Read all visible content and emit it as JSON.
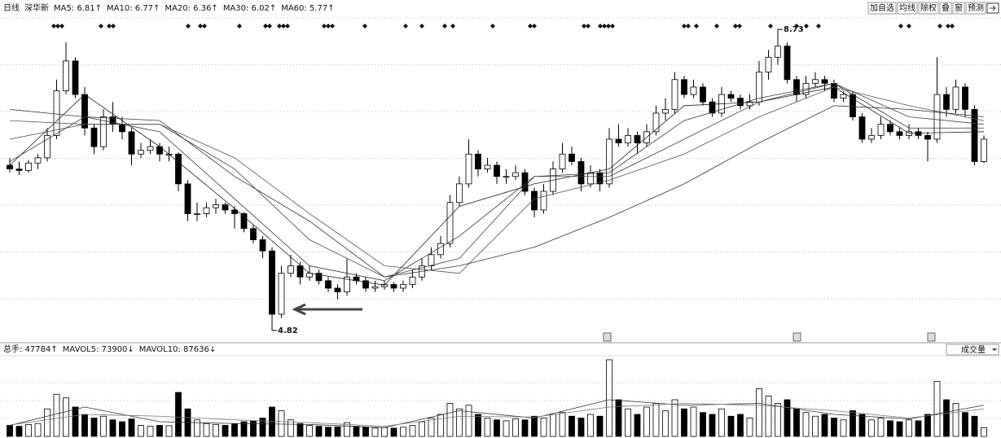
{
  "chart_data": [
    {
      "type": "candlestick",
      "header": [
        "日线",
        "深华新"
      ],
      "open": [
        6.95,
        6.9,
        6.88,
        6.98,
        7.05,
        7.35,
        7.95,
        8.35,
        7.9,
        7.45,
        7.2,
        7.6,
        7.5,
        7.4,
        7.1,
        7.15,
        7.2,
        7.1,
        7.1,
        6.7,
        6.3,
        6.3,
        6.38,
        6.42,
        6.35,
        6.3,
        6.1,
        5.95,
        5.8,
        4.95,
        5.5,
        5.6,
        5.45,
        5.5,
        5.4,
        5.3,
        5.25,
        5.45,
        5.4,
        5.3,
        5.32,
        5.35,
        5.3,
        5.35,
        5.45,
        5.6,
        5.75,
        5.9,
        6.45,
        6.7,
        7.1,
        6.9,
        6.95,
        6.8,
        6.8,
        6.85,
        6.6,
        6.35,
        6.6,
        6.9,
        7.1,
        7.0,
        6.7,
        6.85,
        6.7,
        7.3,
        7.25,
        7.35,
        7.25,
        7.4,
        7.65,
        7.7,
        8.1,
        7.9,
        8.0,
        7.8,
        7.65,
        7.9,
        7.85,
        7.75,
        7.8,
        8.2,
        8.4,
        8.55,
        8.1,
        7.9,
        8.05,
        8.1,
        8.05,
        7.85,
        7.9,
        7.6,
        7.3,
        7.35,
        7.5,
        7.4,
        7.35,
        7.4,
        7.35,
        7.3,
        7.9,
        7.7,
        8.0,
        7.7,
        7.0
      ],
      "high": [
        7.05,
        7.0,
        7.02,
        7.1,
        7.45,
        8.1,
        8.6,
        8.4,
        8.0,
        7.5,
        7.7,
        7.8,
        7.6,
        7.45,
        7.25,
        7.3,
        7.25,
        7.2,
        7.12,
        6.75,
        6.45,
        6.45,
        6.5,
        6.45,
        6.4,
        6.32,
        6.15,
        6.0,
        5.85,
        5.6,
        5.75,
        5.65,
        5.6,
        5.55,
        5.45,
        5.35,
        5.7,
        5.5,
        5.45,
        5.4,
        5.4,
        5.38,
        5.4,
        5.55,
        5.7,
        5.85,
        6.0,
        6.55,
        6.8,
        7.3,
        7.15,
        7.05,
        7.0,
        6.9,
        6.95,
        6.9,
        6.65,
        6.7,
        7.0,
        7.25,
        7.2,
        7.05,
        6.95,
        6.9,
        7.45,
        7.5,
        7.45,
        7.4,
        7.5,
        7.75,
        7.85,
        8.2,
        8.15,
        8.1,
        8.05,
        7.85,
        8.0,
        7.95,
        7.9,
        7.9,
        8.35,
        8.5,
        8.73,
        8.6,
        8.15,
        8.15,
        8.2,
        8.15,
        8.1,
        7.95,
        7.95,
        7.65,
        7.45,
        7.6,
        7.55,
        7.45,
        7.5,
        7.45,
        7.4,
        8.4,
        8.0,
        8.1,
        8.05,
        7.75,
        7.35
      ],
      "low": [
        6.85,
        6.82,
        6.85,
        6.9,
        7.0,
        7.3,
        7.9,
        7.85,
        7.35,
        7.1,
        7.15,
        7.4,
        7.3,
        6.95,
        7.05,
        7.1,
        7.0,
        7.0,
        6.6,
        6.2,
        6.2,
        6.25,
        6.3,
        6.3,
        6.1,
        6.05,
        5.9,
        5.7,
        4.82,
        4.9,
        5.45,
        5.35,
        5.4,
        5.35,
        5.25,
        5.15,
        5.2,
        5.35,
        5.25,
        5.25,
        5.28,
        5.25,
        5.25,
        5.3,
        5.4,
        5.55,
        5.7,
        5.85,
        6.4,
        6.65,
        6.8,
        6.85,
        6.7,
        6.7,
        6.75,
        6.55,
        6.25,
        6.3,
        6.55,
        6.85,
        6.95,
        6.6,
        6.65,
        6.6,
        6.65,
        7.2,
        7.2,
        7.1,
        7.2,
        7.35,
        7.55,
        7.65,
        7.85,
        7.85,
        7.75,
        7.6,
        7.6,
        7.8,
        7.7,
        7.7,
        7.75,
        8.1,
        8.3,
        8.05,
        7.8,
        7.85,
        8.0,
        7.95,
        7.8,
        7.8,
        7.55,
        7.25,
        7.25,
        7.3,
        7.35,
        7.3,
        7.3,
        7.3,
        7.0,
        7.25,
        7.6,
        7.65,
        7.6,
        6.95,
        6.98
      ],
      "close": [
        6.9,
        6.88,
        6.98,
        7.05,
        7.35,
        7.95,
        8.35,
        7.9,
        7.45,
        7.2,
        7.6,
        7.5,
        7.4,
        7.1,
        7.15,
        7.2,
        7.1,
        7.1,
        6.7,
        6.3,
        6.3,
        6.38,
        6.42,
        6.35,
        6.3,
        6.1,
        5.95,
        5.8,
        4.95,
        5.5,
        5.6,
        5.45,
        5.5,
        5.4,
        5.3,
        5.25,
        5.45,
        5.4,
        5.3,
        5.32,
        5.35,
        5.3,
        5.35,
        5.45,
        5.6,
        5.75,
        5.9,
        6.45,
        6.7,
        7.1,
        6.9,
        6.95,
        6.8,
        6.8,
        6.85,
        6.6,
        6.35,
        6.6,
        6.9,
        7.1,
        7.0,
        6.7,
        6.85,
        6.7,
        7.3,
        7.25,
        7.35,
        7.25,
        7.4,
        7.65,
        7.7,
        8.1,
        7.9,
        8.0,
        7.8,
        7.65,
        7.9,
        7.85,
        7.75,
        7.8,
        8.2,
        8.4,
        8.55,
        8.1,
        7.9,
        8.05,
        8.1,
        8.05,
        7.85,
        7.9,
        7.6,
        7.3,
        7.35,
        7.5,
        7.4,
        7.35,
        7.4,
        7.35,
        7.3,
        7.9,
        7.7,
        8.0,
        7.7,
        7.0,
        7.3
      ],
      "series": [
        {
          "legend": "MA5: 6.81↑",
          "color": "#222222",
          "x": [
            0,
            8,
            16,
            24,
            32,
            40,
            48,
            56,
            64,
            72,
            80,
            88,
            96,
            104
          ],
          "values": [
            6.95,
            7.9,
            7.2,
            6.37,
            5.5,
            5.34,
            6.4,
            6.7,
            6.9,
            7.75,
            7.8,
            8.0,
            7.38,
            7.4
          ]
        },
        {
          "legend": "MA10: 6.77↑",
          "color": "#333333",
          "x": [
            0,
            8,
            16,
            24,
            32,
            40,
            48,
            56,
            64,
            72,
            80,
            88,
            96,
            104
          ],
          "values": [
            7.0,
            7.6,
            7.4,
            6.5,
            5.6,
            5.4,
            6.0,
            6.8,
            6.85,
            7.55,
            7.85,
            8.05,
            7.45,
            7.45
          ]
        },
        {
          "legend": "MA20: 6.36↑",
          "color": "#444444",
          "x": [
            0,
            8,
            16,
            24,
            32,
            40,
            48,
            56,
            64,
            72,
            80,
            88,
            96,
            104
          ],
          "values": [
            7.3,
            7.5,
            7.5,
            6.9,
            5.95,
            5.45,
            5.7,
            6.8,
            6.8,
            7.3,
            7.8,
            8.05,
            7.6,
            7.5
          ]
        },
        {
          "legend": "MA30: 6.02↑",
          "color": "#555555",
          "x": [
            0,
            8,
            16,
            24,
            32,
            40,
            48,
            56,
            64,
            72,
            80,
            88,
            96,
            104
          ],
          "values": [
            7.55,
            7.5,
            7.5,
            7.05,
            6.3,
            5.6,
            5.5,
            6.5,
            6.75,
            7.1,
            7.6,
            8.0,
            7.75,
            7.55
          ]
        },
        {
          "legend": "MA60: 5.77↑",
          "color": "#333333",
          "x": [
            0,
            8,
            16,
            24,
            32,
            40,
            48,
            56,
            64,
            72,
            80,
            88,
            96,
            104
          ],
          "values": [
            7.7,
            7.6,
            7.55,
            6.8,
            6.2,
            5.45,
            5.6,
            5.85,
            6.25,
            6.7,
            7.25,
            7.75,
            7.7,
            7.6
          ]
        }
      ],
      "annotations": [
        {
          "label": "4.82",
          "x": 28,
          "y": 4.82
        },
        {
          "label": "8.73",
          "x": 82,
          "y": 8.73
        }
      ],
      "ylim": [
        4.6,
        8.95
      ]
    },
    {
      "type": "bar",
      "values": [
        60000,
        55000,
        65000,
        70000,
        150000,
        230000,
        210000,
        160000,
        120000,
        100000,
        110000,
        90000,
        80000,
        95000,
        60000,
        55000,
        60000,
        58000,
        240000,
        150000,
        90000,
        70000,
        65000,
        60000,
        70000,
        80000,
        85000,
        100000,
        160000,
        140000,
        90000,
        70000,
        60000,
        55000,
        50000,
        52000,
        75000,
        55000,
        50000,
        45000,
        48000,
        45000,
        50000,
        60000,
        80000,
        100000,
        120000,
        180000,
        150000,
        170000,
        120000,
        100000,
        90000,
        85000,
        95000,
        90000,
        110000,
        100000,
        120000,
        130000,
        110000,
        100000,
        120000,
        110000,
        418000,
        200000,
        150000,
        120000,
        160000,
        180000,
        140000,
        200000,
        150000,
        160000,
        130000,
        120000,
        150000,
        110000,
        120000,
        100000,
        260000,
        220000,
        180000,
        200000,
        150000,
        130000,
        110000,
        120000,
        100000,
        90000,
        140000,
        120000,
        90000,
        100000,
        85000,
        80000,
        90000,
        85000,
        120000,
        300000,
        200000,
        180000,
        130000,
        110000,
        47784
      ],
      "header": "总手: 47784↑",
      "series": [
        {
          "legend": "MAVOL5: 73900↓",
          "color": "#333333",
          "x": [
            0,
            8,
            16,
            24,
            32,
            40,
            48,
            56,
            64,
            72,
            80,
            88,
            96,
            104
          ],
          "values": [
            60000,
            160000,
            80000,
            70000,
            65000,
            48000,
            140000,
            100000,
            200000,
            170000,
            180000,
            120000,
            95000,
            170000
          ]
        },
        {
          "legend": "MAVOL10: 87636↓",
          "color": "#777777",
          "x": [
            0,
            8,
            16,
            24,
            32,
            40,
            48,
            56,
            64,
            72,
            80,
            88,
            96,
            104
          ],
          "values": [
            62000,
            120000,
            110000,
            90000,
            75000,
            55000,
            110000,
            105000,
            160000,
            180000,
            170000,
            140000,
            100000,
            150000
          ]
        }
      ],
      "indicator": "成交量",
      "ylim": [
        0,
        440000
      ]
    }
  ],
  "toolbar": [
    "加自选",
    "均线",
    "除权",
    "叠",
    "窗",
    "预测"
  ]
}
